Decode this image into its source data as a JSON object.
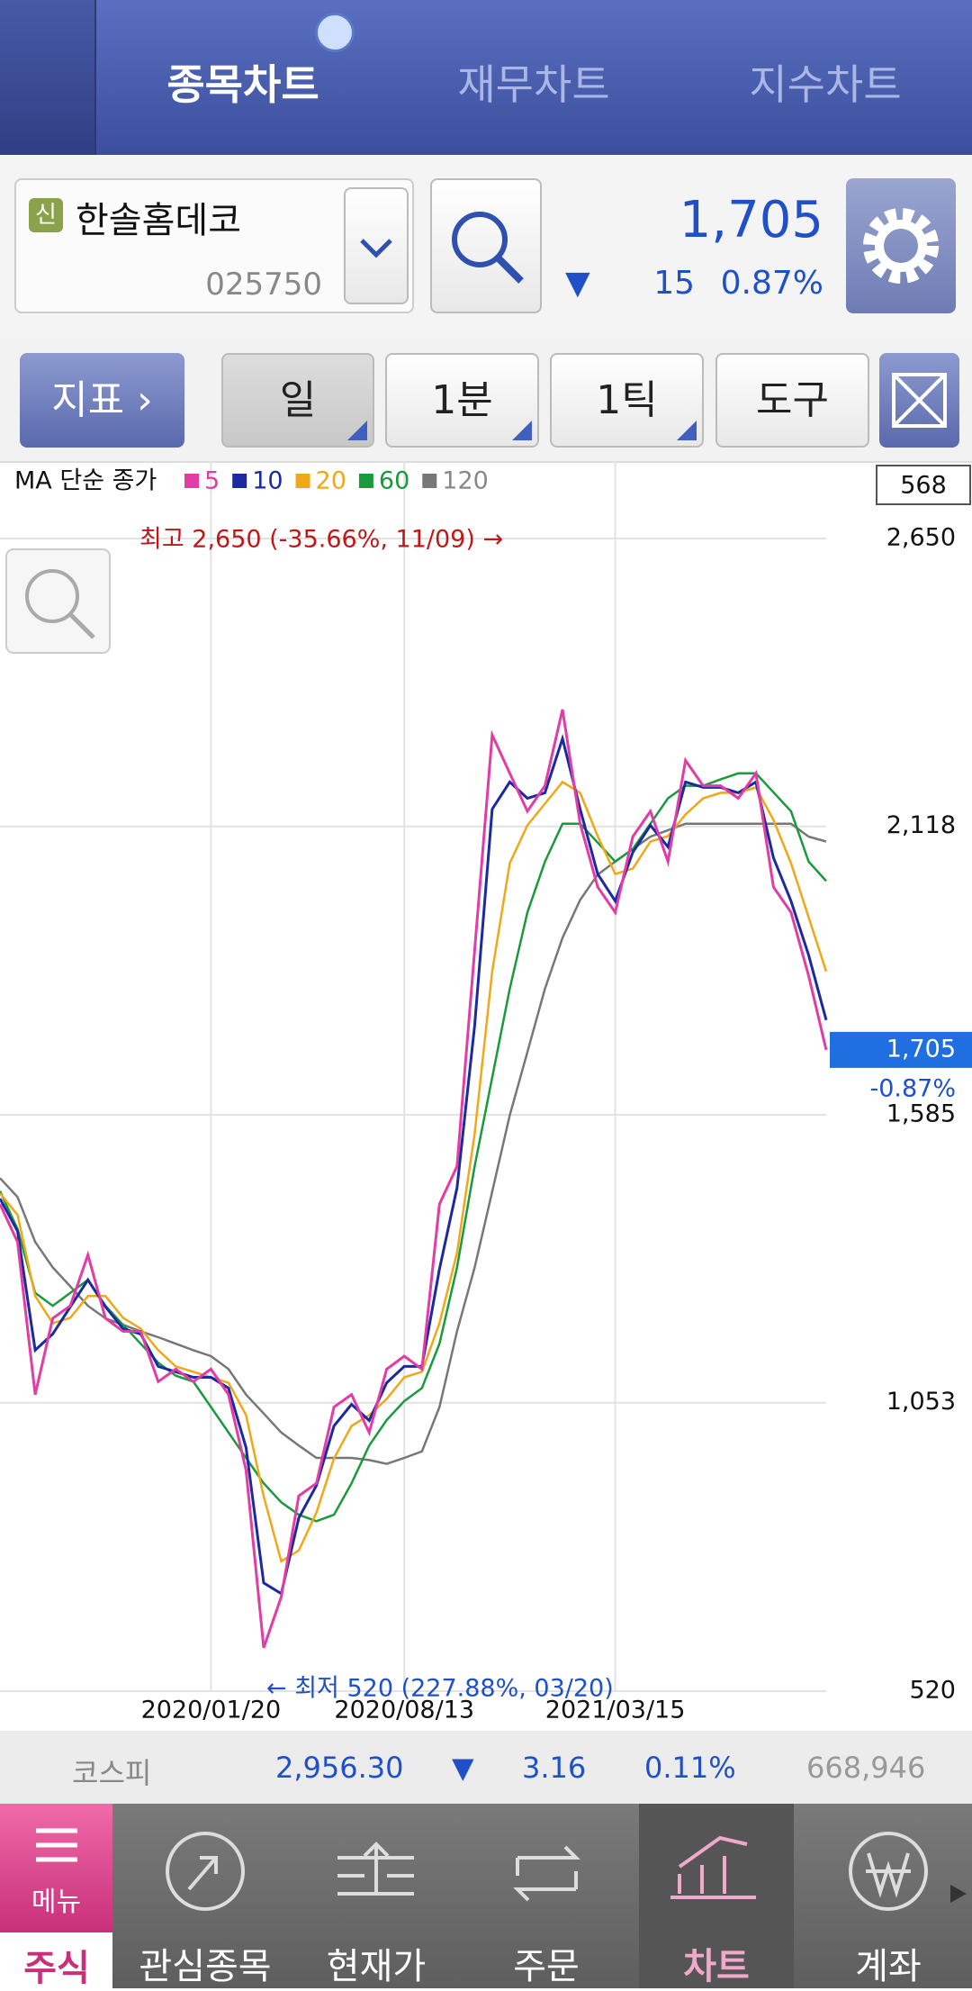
{
  "header": {
    "tabs": [
      "종목차트",
      "재무차트",
      "지수차트"
    ]
  },
  "stock": {
    "badge": "신",
    "name": "한솔홈데코",
    "code": "025750",
    "price": "1,705",
    "change_arrow": "▼",
    "change": "15",
    "change_rate": "0.87%"
  },
  "toolbar": {
    "buttons": [
      "지표",
      "일",
      "1분",
      "1틱",
      "도구"
    ]
  },
  "chart_data": {
    "type": "line",
    "legend_title": "MA 단순 종가",
    "count_box": "568",
    "high_label": "최고 2,650 (-35.66%, 11/09) →",
    "low_label": "← 최저 520 (227.88%, 03/20)",
    "last_price_label": "1,705",
    "last_change_label": "-0.87%",
    "ylim": [
      520,
      2650
    ],
    "yticks": [
      520,
      {
        "value": 1053,
        "label": "1,053"
      },
      {
        "value": 1585,
        "label": "1,585"
      },
      {
        "value": 2118,
        "label": "2,118"
      },
      {
        "value": 2650,
        "label": "2,650"
      }
    ],
    "grid": true,
    "categories": [
      null,
      null,
      null,
      null,
      null,
      null,
      null,
      null,
      null,
      null,
      null,
      null,
      "2020/01/20",
      null,
      null,
      null,
      null,
      null,
      null,
      null,
      null,
      null,
      null,
      "2020/08/13",
      null,
      null,
      null,
      null,
      null,
      null,
      null,
      null,
      null,
      null,
      null,
      "2021/03/15",
      null,
      null,
      null,
      null,
      null,
      null,
      null,
      null,
      null,
      null,
      null,
      null
    ],
    "series": [
      {
        "name": "5",
        "color": "#e23ca5",
        "values": [
          1420,
          1350,
          1068,
          1209,
          1232,
          1326,
          1209,
          1185,
          1185,
          1092,
          1115,
          1092,
          1115,
          1068,
          928,
          600,
          694,
          881,
          904,
          1045,
          1068,
          998,
          1115,
          1139,
          1115,
          1420,
          1490,
          1889,
          2287,
          2216,
          2146,
          2193,
          2334,
          2123,
          2006,
          1959,
          2099,
          2146,
          2053,
          2240,
          2193,
          2193,
          2170,
          2216,
          2006,
          1959,
          1842,
          1705
        ]
      },
      {
        "name": "10",
        "color": "#1b2aa0",
        "values": [
          1430,
          1370,
          1150,
          1180,
          1230,
          1280,
          1230,
          1190,
          1180,
          1120,
          1110,
          1100,
          1100,
          1080,
          970,
          720,
          700,
          840,
          900,
          1010,
          1050,
          1020,
          1090,
          1120,
          1120,
          1300,
          1450,
          1750,
          2150,
          2200,
          2170,
          2180,
          2280,
          2150,
          2030,
          1980,
          2070,
          2120,
          2080,
          2200,
          2190,
          2190,
          2180,
          2200,
          2060,
          1980,
          1880,
          1760
        ]
      },
      {
        "name": "20",
        "color": "#f0a818",
        "values": [
          1440,
          1400,
          1250,
          1200,
          1210,
          1250,
          1250,
          1210,
          1190,
          1150,
          1120,
          1110,
          1100,
          1090,
          1030,
          880,
          760,
          780,
          850,
          950,
          1010,
          1030,
          1060,
          1100,
          1110,
          1200,
          1330,
          1550,
          1850,
          2050,
          2120,
          2160,
          2200,
          2180,
          2100,
          2030,
          2040,
          2090,
          2100,
          2140,
          2170,
          2180,
          2180,
          2190,
          2130,
          2050,
          1950,
          1850
        ]
      },
      {
        "name": "60",
        "color": "#1a9a3c",
        "values": [
          1444,
          1374,
          1256,
          1232,
          1256,
          1280,
          1232,
          1197,
          1162,
          1127,
          1103,
          1092,
          1045,
          998,
          951,
          904,
          869,
          846,
          834,
          846,
          904,
          974,
          1021,
          1056,
          1080,
          1162,
          1303,
          1490,
          1654,
          1818,
          1959,
          2053,
          2123,
          2123,
          2088,
          2053,
          2076,
          2123,
          2170,
          2193,
          2193,
          2205,
          2216,
          2216,
          2181,
          2146,
          2053,
          2017
        ]
      },
      {
        "name": "120",
        "color": "#777777",
        "values": [
          1468,
          1433,
          1350,
          1303,
          1268,
          1232,
          1209,
          1197,
          1185,
          1174,
          1162,
          1150,
          1139,
          1115,
          1068,
          1033,
          998,
          974,
          951,
          951,
          951,
          947,
          940,
          951,
          963,
          1045,
          1185,
          1303,
          1443,
          1584,
          1701,
          1818,
          1912,
          1982,
          2029,
          2053,
          2076,
          2099,
          2111,
          2123,
          2123,
          2123,
          2123,
          2123,
          2123,
          2123,
          2099,
          2090
        ]
      }
    ]
  },
  "index_bar": {
    "name": "코스피",
    "value": "2,956.30",
    "arrow": "▼",
    "change": "3.16",
    "rate": "0.11%",
    "volume": "668,946"
  },
  "tabbar": {
    "menu": "메뉴",
    "items": [
      "주식",
      "관심종목",
      "현재가",
      "주문",
      "차트",
      "계좌"
    ]
  }
}
